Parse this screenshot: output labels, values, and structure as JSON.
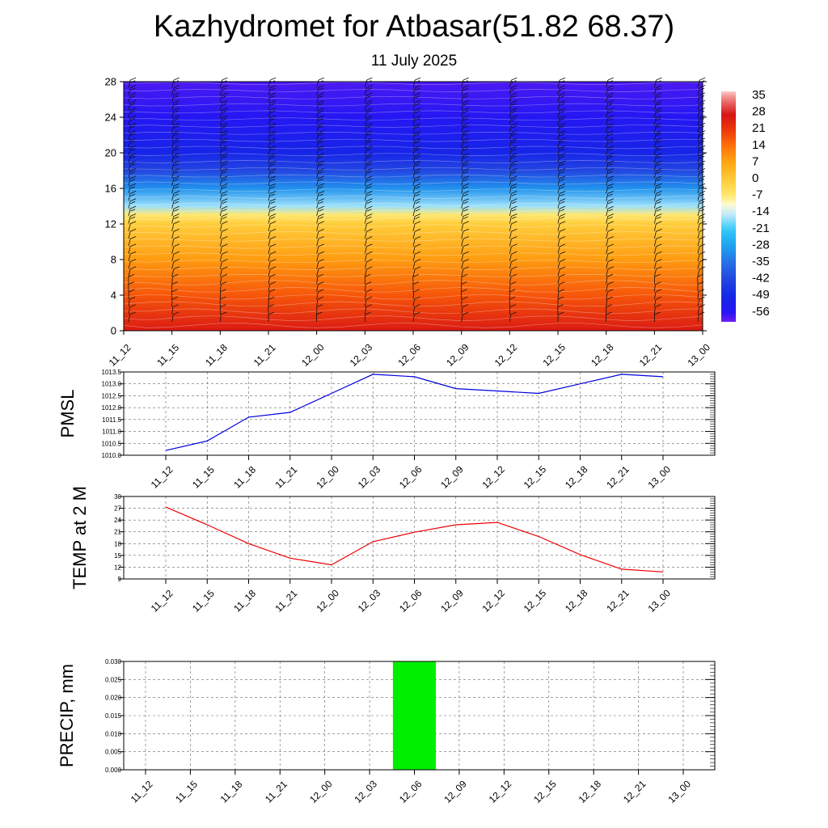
{
  "header": {
    "title": "Kazhydromet for Atbasar(51.82 68.37)",
    "subtitle": "11 July 2025"
  },
  "time_labels": [
    "11_12",
    "11_15",
    "11_18",
    "11_21",
    "12_00",
    "12_03",
    "12_06",
    "12_09",
    "12_12",
    "12_15",
    "12_18",
    "12_21",
    "13_00"
  ],
  "colors": {
    "pmsl_line": "#0000dd",
    "temp_line": "#ee0000",
    "precip_bar": "#00ee00",
    "grid": "#666666"
  },
  "chart_data": [
    {
      "type": "heatmap",
      "title": "",
      "y_ticks": [
        "0",
        "4",
        "8",
        "12",
        "16",
        "20",
        "24",
        "28"
      ],
      "ylim": [
        0,
        28
      ],
      "x_ticks": [
        "11_12",
        "11_15",
        "11_18",
        "11_21",
        "12_00",
        "12_03",
        "12_06",
        "12_09",
        "12_12",
        "12_15",
        "12_18",
        "12_21",
        "13_00"
      ],
      "colorbar_labels": [
        "35",
        "28",
        "21",
        "14",
        "7",
        "0",
        "-7",
        "-14",
        "-21",
        "-28",
        "-35",
        "-42",
        "-49",
        "-56"
      ],
      "colorbar_range": [
        -60,
        38
      ],
      "level_temperatures": [
        {
          "level": 0,
          "value": 27
        },
        {
          "level": 4,
          "value": 18
        },
        {
          "level": 8,
          "value": 9
        },
        {
          "level": 12,
          "value": 0
        },
        {
          "level": 13,
          "value": -6
        },
        {
          "level": 14,
          "value": -16
        },
        {
          "level": 16,
          "value": -30
        },
        {
          "level": 18,
          "value": -42
        },
        {
          "level": 20,
          "value": -50
        },
        {
          "level": 24,
          "value": -55
        },
        {
          "level": 28,
          "value": -58
        }
      ],
      "wind_barbs": true
    },
    {
      "type": "line",
      "ylabel": "PMSL",
      "x": [
        "11_12",
        "11_15",
        "11_18",
        "11_21",
        "12_00",
        "12_03",
        "12_06",
        "12_09",
        "12_12",
        "12_15",
        "12_18",
        "12_21",
        "13_00"
      ],
      "values": [
        1010.2,
        1010.6,
        1011.6,
        1011.8,
        1012.6,
        1013.4,
        1013.3,
        1012.8,
        1012.7,
        1012.6,
        1013.0,
        1013.4,
        1013.3
      ],
      "ylim": [
        1010.0,
        1013.5
      ],
      "y_ticks": [
        "1010.0",
        "1010.5",
        "1011.0",
        "1011.5",
        "1012.0",
        "1012.5",
        "1013.0",
        "1013.5"
      ],
      "grid": true
    },
    {
      "type": "line",
      "ylabel": "TEMP at 2 M",
      "x": [
        "11_12",
        "11_15",
        "11_18",
        "11_21",
        "12_00",
        "12_03",
        "12_06",
        "12_09",
        "12_12",
        "12_15",
        "12_18",
        "12_21",
        "13_00"
      ],
      "values": [
        27.3,
        22.8,
        18.0,
        14.3,
        12.6,
        18.5,
        20.9,
        22.8,
        23.4,
        19.8,
        15.2,
        11.5,
        10.8
      ],
      "ylim": [
        9,
        30
      ],
      "y_ticks": [
        "9",
        "12",
        "15",
        "18",
        "21",
        "24",
        "27",
        "30"
      ],
      "grid": true
    },
    {
      "type": "bar",
      "ylabel": "PRECIP, mm",
      "x": [
        "11_12",
        "11_15",
        "11_18",
        "11_21",
        "12_00",
        "12_03",
        "12_06",
        "12_09",
        "12_12",
        "12_15",
        "12_18",
        "12_21",
        "13_00"
      ],
      "values": [
        0,
        0,
        0,
        0,
        0,
        0,
        0.03,
        0,
        0,
        0,
        0,
        0,
        0
      ],
      "ylim": [
        0.0,
        0.03
      ],
      "y_ticks": [
        "0.000",
        "0.005",
        "0.010",
        "0.015",
        "0.020",
        "0.025",
        "0.030"
      ],
      "grid": true
    }
  ]
}
